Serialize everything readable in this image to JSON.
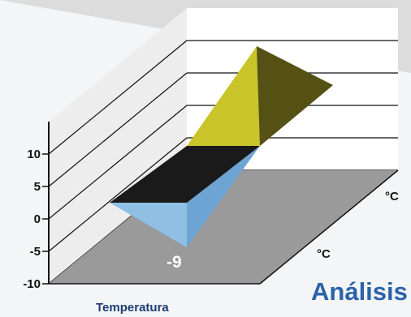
{
  "chart_data": {
    "type": "area",
    "view": "3d",
    "categories": [
      "",
      "",
      ""
    ],
    "values": [
      0,
      -9,
      15
    ],
    "xlabel": "Temperatura",
    "ylabel": "",
    "ylim": [
      -10,
      15
    ],
    "yticks": [
      10,
      5,
      0,
      -5,
      -10
    ],
    "data_labels": [
      "-9"
    ],
    "depth_units": [
      "°C",
      "°C"
    ],
    "grid": true,
    "colors": {
      "positive": "#c9c42a",
      "negative": "#8fc0e4",
      "floor": "#9a9a9a",
      "zero_plane": "#1a1a1a"
    }
  },
  "partial_title": "Análisis"
}
